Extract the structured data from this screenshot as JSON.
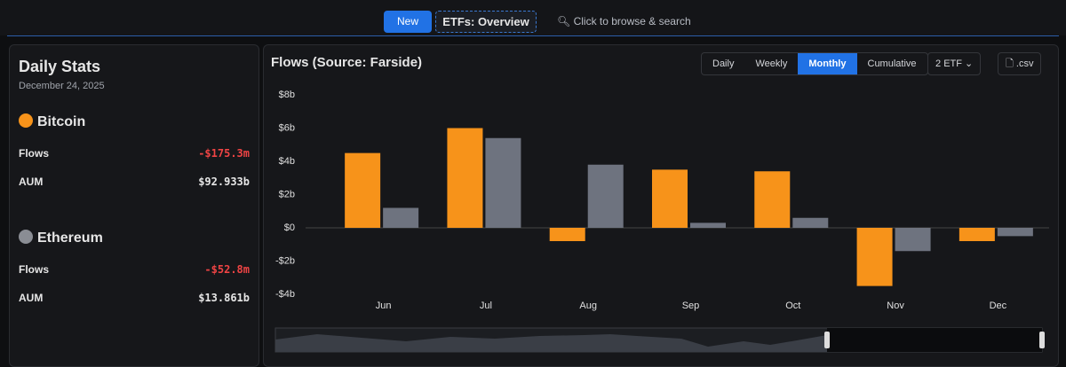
{
  "header": {
    "badge": "New",
    "section": "ETFs: Overview",
    "search": "Click to browse & search"
  },
  "sidebar": {
    "title": "Daily Stats",
    "date": "December 24, 2025",
    "assets": [
      {
        "name": "Bitcoin",
        "rows": [
          {
            "label": "Flows",
            "value": "-$175.3m"
          },
          {
            "label": "AUM",
            "value": "$92.933b"
          }
        ]
      },
      {
        "name": "Ethereum",
        "rows": [
          {
            "label": "Flows",
            "value": "-$52.8m"
          },
          {
            "label": "AUM",
            "value": "$13.861b"
          }
        ]
      }
    ]
  },
  "controls": {
    "periods": [
      "Daily",
      "Weekly",
      "Monthly",
      "Cumulative"
    ],
    "active": "Monthly",
    "etf_count": "2",
    "etf": "ETF",
    "export": ".csv"
  },
  "chart_data": {
    "type": "bar",
    "title": "Flows (Source: Farside)",
    "categories": [
      "Jun",
      "Jul",
      "Aug",
      "Sep",
      "Oct",
      "Nov",
      "Dec"
    ],
    "series": [
      {
        "color": "#f7931a",
        "values": [
          4.5,
          6.0,
          -0.8,
          3.5,
          3.4,
          -3.5,
          -0.8
        ]
      },
      {
        "color": "#6e737f",
        "values": [
          1.2,
          5.4,
          3.8,
          0.3,
          0.6,
          -1.4,
          -0.5
        ]
      }
    ],
    "ylim": [
      -4,
      8
    ],
    "yticks": [
      {
        "value": -4,
        "label": "-$4b"
      },
      {
        "value": -2,
        "label": "-$2b"
      },
      {
        "value": 0,
        "label": "$0"
      },
      {
        "value": 2,
        "label": "$2b"
      },
      {
        "value": 4,
        "label": "$4b"
      },
      {
        "value": 6,
        "label": "$6b"
      },
      {
        "value": 8,
        "label": "$8b"
      }
    ],
    "grid": false
  }
}
